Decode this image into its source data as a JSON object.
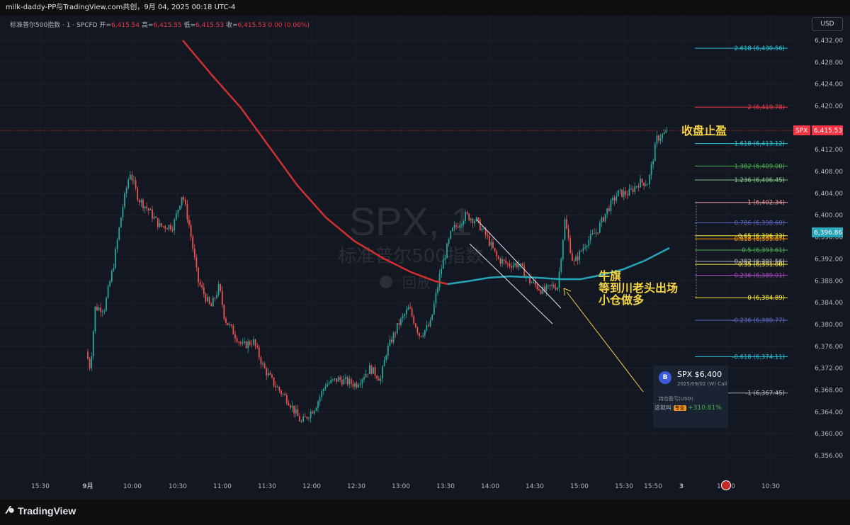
{
  "header": {
    "title": "milk-daddy-PP与TradingView.com共创，9月 04, 2025 00:18 UTC-4"
  },
  "legend": {
    "symbol": "标准普尔500指数 · 1 · SPCFD",
    "open_label": "开=",
    "open": "6,415.54",
    "high_label": "高=",
    "high": "6,415.55",
    "low_label": "低=",
    "low": "6,415.53",
    "close_label": "收=",
    "close": "6,415.53",
    "change": "0.00 (0.00%)"
  },
  "currency_button": "USD",
  "watermark": {
    "symbol": "SPX, 1",
    "name": "标准普尔500指数",
    "replay": "回放"
  },
  "price_axis": {
    "ticks": [
      "6,432.00",
      "6,428.00",
      "6,424.00",
      "6,420.00",
      "6,416.00",
      "6,412.00",
      "6,408.00",
      "6,404.00",
      "6,400.00",
      "6,396.00",
      "6,392.00",
      "6,388.00",
      "6,384.00",
      "6,380.00",
      "6,376.00",
      "6,372.00",
      "6,368.00",
      "6,364.00",
      "6,360.00",
      "6,356.00"
    ],
    "last_price": "6,415.53",
    "last_symbol": "SPX",
    "ma_price": "6,396.86"
  },
  "time_axis": {
    "ticks": [
      "15:30",
      "9月",
      "10:00",
      "10:30",
      "11:00",
      "11:30",
      "12:00",
      "12:30",
      "13:00",
      "13:30",
      "14:00",
      "14:30",
      "15:00",
      "15:30",
      "15:50",
      "3",
      "10:00",
      "10:30"
    ]
  },
  "fib_levels": [
    {
      "label": "2.618 (6,430.56)",
      "price": 6430.56,
      "color": "#26c6da"
    },
    {
      "label": "2 (6,419.78)",
      "price": 6419.78,
      "color": "#f23645"
    },
    {
      "label": "1.618 (6,413.12)",
      "price": 6413.12,
      "color": "#26c6da"
    },
    {
      "label": "1.382 (6,409.00)",
      "price": 6409.0,
      "color": "#4caf50"
    },
    {
      "label": "1.236 (6,406.45)",
      "price": 6406.45,
      "color": "#81c784"
    },
    {
      "label": "1 (6,402.34)",
      "price": 6402.34,
      "color": "#ef9a9a"
    },
    {
      "label": "0.786 (6,398.60)",
      "price": 6398.6,
      "color": "#5c6bc0"
    },
    {
      "label": "0.65 (6,396.23)",
      "price": 6396.23,
      "color": "#ffeb3b"
    },
    {
      "label": "0.618 (6,395.67)",
      "price": 6395.67,
      "color": "#ff9800"
    },
    {
      "label": "0.5 (6,393.61)",
      "price": 6393.61,
      "color": "#4caf50"
    },
    {
      "label": "0.382 (6,391.56)",
      "price": 6391.56,
      "color": "#b2b5be"
    },
    {
      "label": "0.35 (6,391.00)",
      "price": 6391.0,
      "color": "#ffeb3b"
    },
    {
      "label": "0.236 (6,389.01)",
      "price": 6389.01,
      "color": "#ab47bc"
    },
    {
      "label": "0 (6,384.89)",
      "price": 6384.89,
      "color": "#ffeb3b"
    },
    {
      "label": "-0.236 (6,380.77)",
      "price": 6380.77,
      "color": "#5c6bc0"
    },
    {
      "label": "-0.618 (6,374.11)",
      "price": 6374.11,
      "color": "#26c6da"
    },
    {
      "label": "-1 (6,367.45)",
      "price": 6367.45,
      "color": "#b2b5be"
    }
  ],
  "annotations": {
    "take_profit": "收盘止盈",
    "bull_flag": [
      "牛旗",
      "等到川老头出场",
      "小仓做多"
    ]
  },
  "position_card": {
    "badge": "B",
    "symbol": "SPX $6,400",
    "date": "2025/09/02 (W) Call",
    "pl_label": "持仓盈亏(USD)",
    "user": "这就叫",
    "tag": "专业",
    "gain": "+310.81%"
  },
  "footer": {
    "logo_text": "TradingView"
  },
  "colors": {
    "background": "#131722",
    "up": "#26a69a",
    "down": "#ef5350",
    "ma_red": "#d32f2f",
    "ma_teal": "#26a5b8"
  }
}
